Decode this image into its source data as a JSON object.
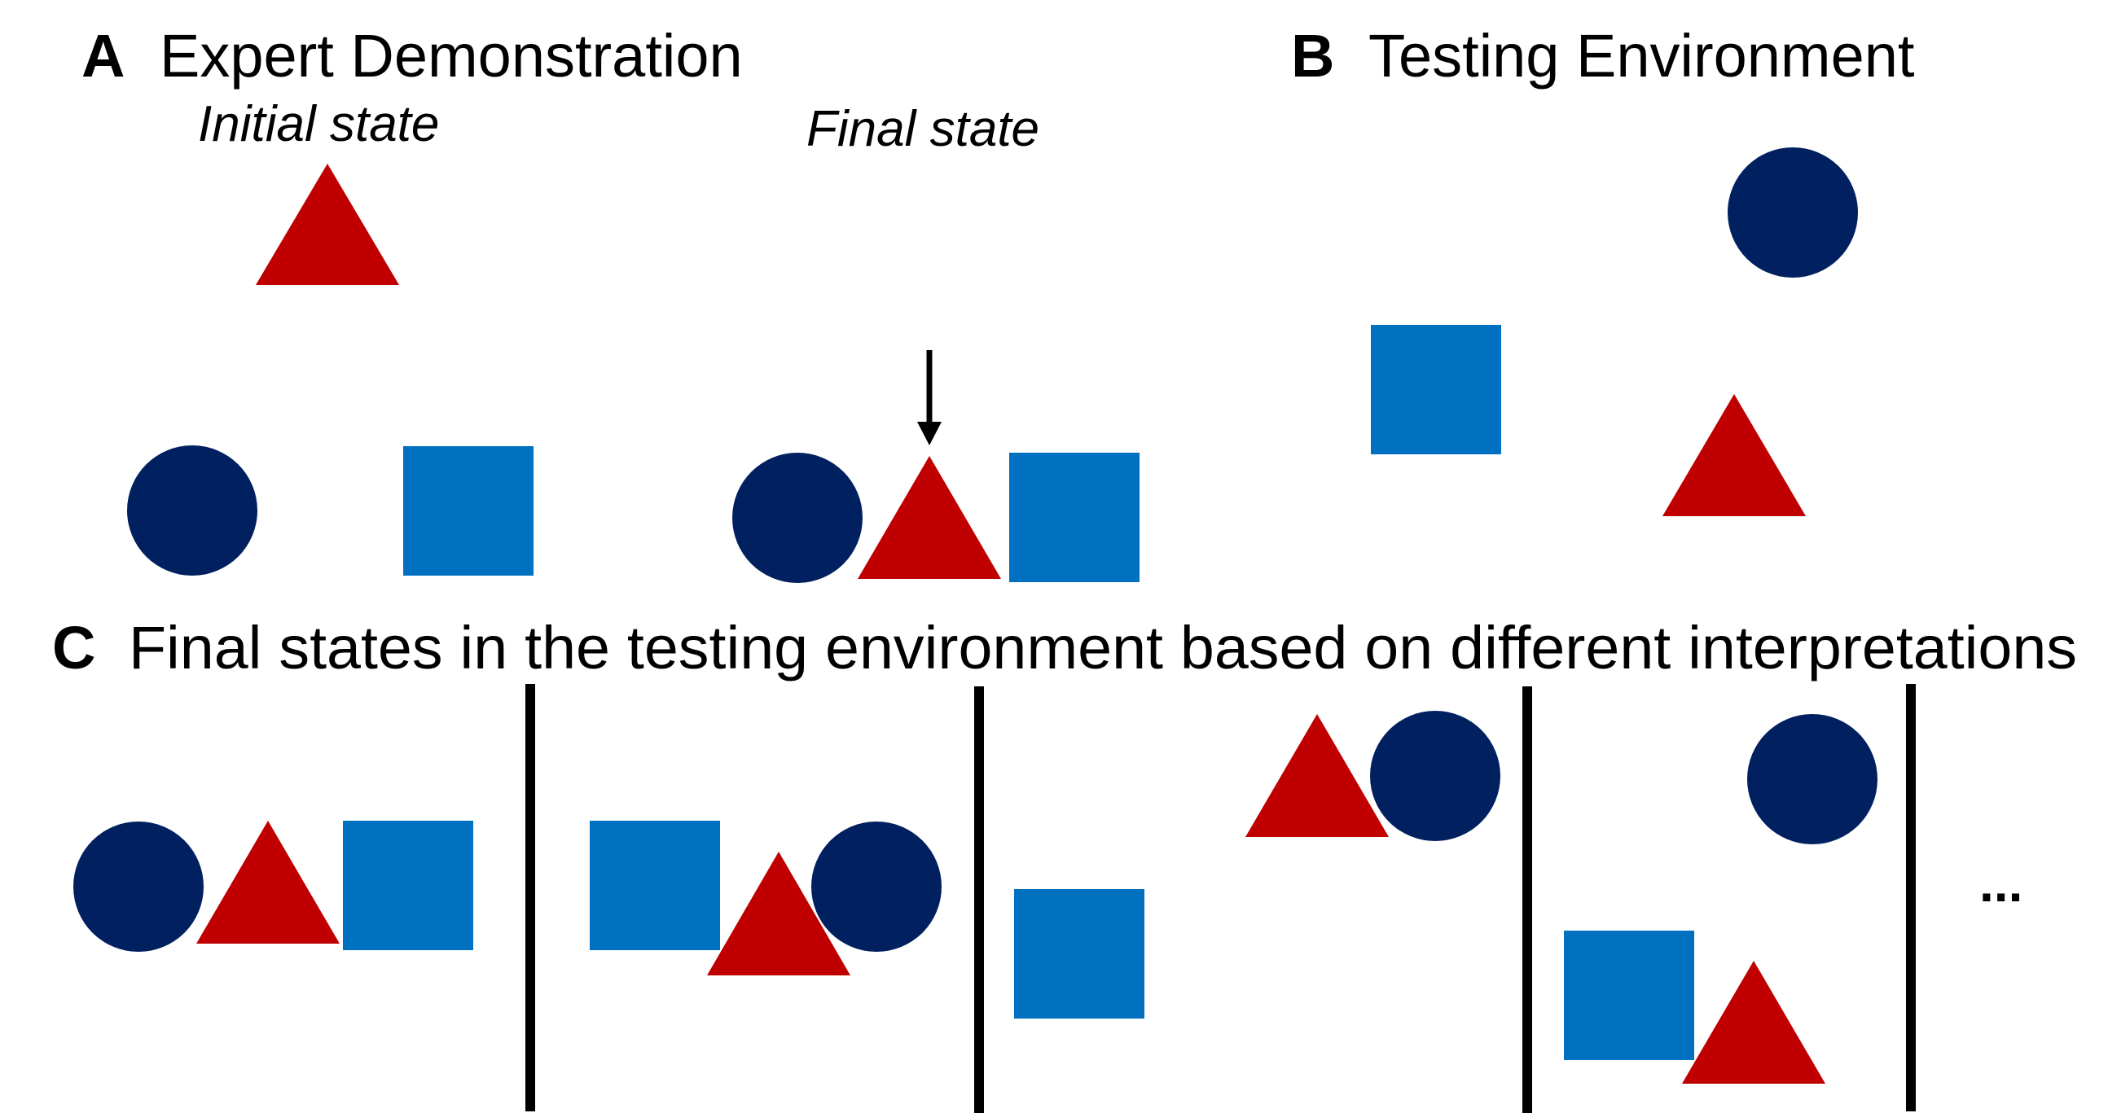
{
  "colors": {
    "circle": "#002060",
    "square": "#0070C0",
    "triangle": "#C00000",
    "text": "#000000",
    "divider": "#000000"
  },
  "panel_a": {
    "letter": "A",
    "title": "Expert Demonstration",
    "initial_label": "Initial state",
    "final_label": "Final state"
  },
  "panel_b": {
    "letter": "B",
    "title": "Testing Environment"
  },
  "panel_c": {
    "letter": "C",
    "title": "Final states in the testing environment based on different interpretations",
    "ellipsis": "..."
  }
}
